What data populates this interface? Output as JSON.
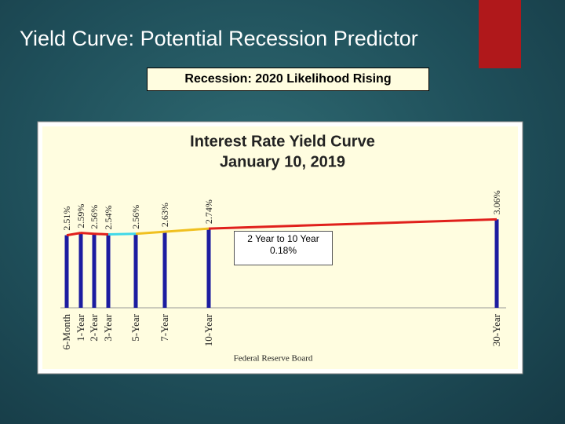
{
  "slide": {
    "title": "Yield Curve:  Potential Recession Predictor",
    "banner": "Recession:  2020 Likelihood Rising"
  },
  "chart_data": {
    "type": "bar",
    "title": "Interest Rate Yield Curve",
    "subtitle": "January 10, 2019",
    "categories": [
      "6-Month",
      "1-Year",
      "2-Year",
      "3-Year",
      "5-Year",
      "7-Year",
      "10-Year",
      "30-Year"
    ],
    "values": [
      2.51,
      2.59,
      2.56,
      2.54,
      2.56,
      2.63,
      2.74,
      3.06
    ],
    "value_labels": [
      "2.51%",
      "2.59%",
      "2.56%",
      "2.54%",
      "2.56%",
      "2.63%",
      "2.74%",
      "3.06%"
    ],
    "color": "#1c1ca0",
    "line_colors": [
      "#e0201c",
      "#e0201c",
      "#e0201c",
      "#40d8e8",
      "#f0c020",
      "#f0c020",
      "#e0201c"
    ],
    "ylim": [
      0,
      4.4
    ],
    "annotation": "2 Year to 10 Year 0.18%",
    "source": "Federal Reserve Board"
  }
}
